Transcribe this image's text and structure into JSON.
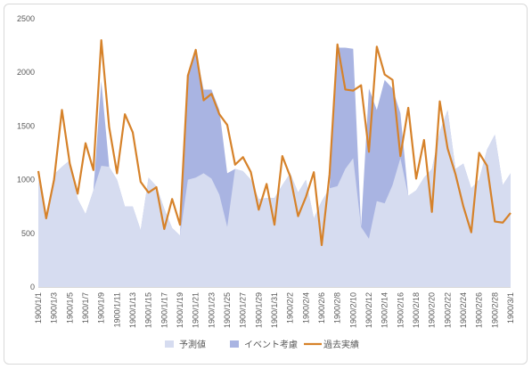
{
  "chart_data": {
    "type": "area",
    "title": "",
    "xlabel": "",
    "ylabel": "",
    "ylim": [
      0,
      2500
    ],
    "yticks": [
      0,
      500,
      1000,
      1500,
      2000,
      2500
    ],
    "grid": false,
    "legend": "bottom",
    "x": [
      "1900/1/1",
      "1900/1/2",
      "1900/1/3",
      "1900/1/4",
      "1900/1/5",
      "1900/1/6",
      "1900/1/7",
      "1900/1/8",
      "1900/1/9",
      "1900/1/10",
      "1900/1/11",
      "1900/1/12",
      "1900/1/13",
      "1900/1/14",
      "1900/1/15",
      "1900/1/16",
      "1900/1/17",
      "1900/1/18",
      "1900/1/19",
      "1900/1/20",
      "1900/1/21",
      "1900/1/22",
      "1900/1/23",
      "1900/1/24",
      "1900/1/25",
      "1900/1/26",
      "1900/1/27",
      "1900/1/28",
      "1900/1/29",
      "1900/1/30",
      "1900/1/31",
      "1900/2/1",
      "1900/2/2",
      "1900/2/3",
      "1900/2/4",
      "1900/2/5",
      "1900/2/6",
      "1900/2/7",
      "1900/2/8",
      "1900/2/9",
      "1900/2/10",
      "1900/2/11",
      "1900/2/12",
      "1900/2/13",
      "1900/2/14",
      "1900/2/15",
      "1900/2/16",
      "1900/2/17",
      "1900/2/18",
      "1900/2/19",
      "1900/2/20",
      "1900/2/21",
      "1900/2/22",
      "1900/2/23",
      "1900/2/24",
      "1900/2/25",
      "1900/2/26",
      "1900/2/27",
      "1900/2/28",
      "1900/2/29",
      "1900/3/1"
    ],
    "xtick_labels": [
      "1900/1/1",
      "1900/1/3",
      "1900/1/5",
      "1900/1/7",
      "1900/1/9",
      "1900/1/11",
      "1900/1/13",
      "1900/1/15",
      "1900/1/17",
      "1900/1/19",
      "1900/1/21",
      "1900/1/23",
      "1900/1/25",
      "1900/1/27",
      "1900/1/29",
      "1900/1/31",
      "1900/2/2",
      "1900/2/4",
      "1900/2/6",
      "1900/2/8",
      "1900/2/10",
      "1900/2/12",
      "1900/2/14",
      "1900/2/16",
      "1900/2/18",
      "1900/2/20",
      "1900/2/22",
      "1900/2/24",
      "1900/2/26",
      "1900/2/28",
      "1900/3/1"
    ],
    "series": [
      {
        "name": "予測値",
        "kind": "area",
        "color": "#d6dcf0",
        "values": [
          1000,
          650,
          1050,
          1120,
          1180,
          820,
          680,
          900,
          1130,
          1120,
          1000,
          750,
          750,
          530,
          1020,
          940,
          730,
          550,
          480,
          1000,
          1020,
          1060,
          1010,
          860,
          560,
          1100,
          1080,
          1000,
          820,
          830,
          830,
          950,
          1060,
          880,
          1000,
          640,
          800,
          920,
          940,
          1100,
          1200,
          560,
          450,
          800,
          780,
          950,
          1200,
          850,
          900,
          1020,
          1100,
          1450,
          1650,
          1100,
          1150,
          920,
          1000,
          1280,
          1420,
          950,
          1060
        ]
      },
      {
        "name": "イベント考慮",
        "kind": "area",
        "color": "#a9b4e2",
        "values": [
          1000,
          650,
          1050,
          1120,
          1180,
          820,
          680,
          900,
          1920,
          1120,
          1000,
          750,
          750,
          530,
          1020,
          940,
          730,
          550,
          480,
          1950,
          2200,
          1840,
          1840,
          1650,
          1060,
          1100,
          1080,
          1000,
          820,
          830,
          830,
          950,
          1060,
          880,
          1000,
          640,
          800,
          920,
          2230,
          2230,
          2220,
          560,
          1850,
          1650,
          1930,
          1850,
          1620,
          850,
          900,
          1020,
          1100,
          1450,
          1650,
          1100,
          1150,
          920,
          1000,
          1280,
          1420,
          950,
          1060
        ]
      },
      {
        "name": "過去実績",
        "kind": "line",
        "color": "#d6822a",
        "values": [
          1080,
          640,
          1000,
          1650,
          1150,
          870,
          1340,
          1090,
          2300,
          1490,
          1060,
          1610,
          1440,
          980,
          880,
          930,
          540,
          820,
          580,
          1970,
          2210,
          1740,
          1800,
          1610,
          1510,
          1140,
          1210,
          1070,
          720,
          960,
          580,
          1220,
          1030,
          660,
          840,
          1070,
          390,
          1050,
          2260,
          1840,
          1830,
          1880,
          1260,
          2240,
          1980,
          1930,
          1220,
          1670,
          1010,
          1370,
          700,
          1730,
          1290,
          1050,
          750,
          510,
          1250,
          1130,
          610,
          600,
          690
        ]
      }
    ]
  }
}
